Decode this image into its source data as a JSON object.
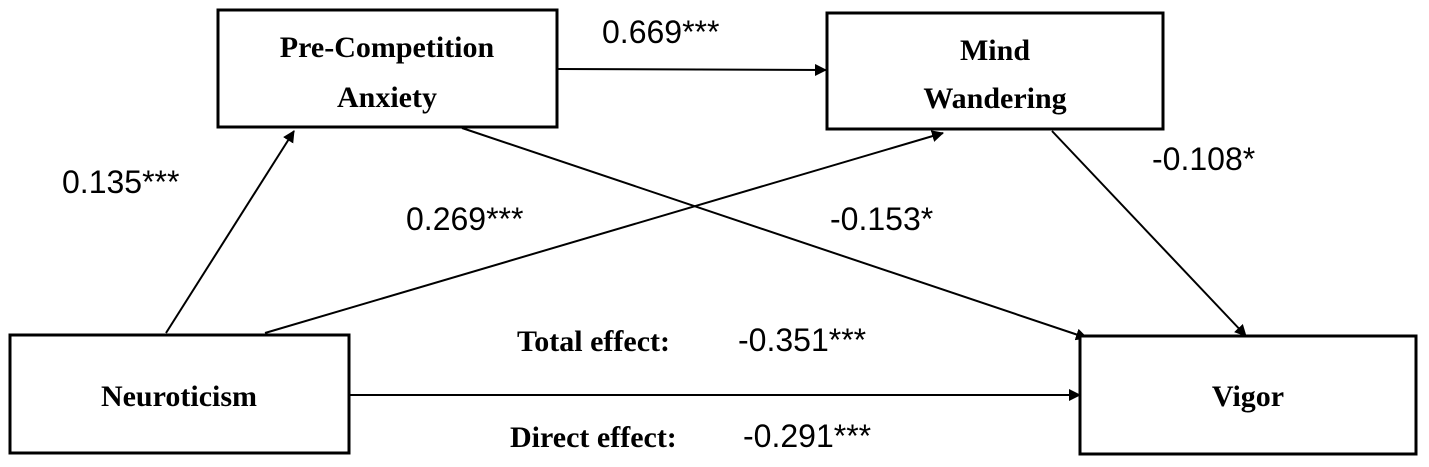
{
  "nodes": {
    "anxiety": {
      "line1": "Pre-Competition",
      "line2": "Anxiety"
    },
    "mind": {
      "line1": "Mind",
      "line2": "Wandering"
    },
    "neuroticism": {
      "label": "Neuroticism"
    },
    "vigor": {
      "label": "Vigor"
    }
  },
  "paths": {
    "anxiety_to_mind": "0.669***",
    "neuroticism_to_anxiety": "0.135***",
    "neuroticism_to_mind": "0.269***",
    "anxiety_to_vigor": "-0.153*",
    "mind_to_vigor": "-0.108*"
  },
  "effects": {
    "total_label": "Total effect:",
    "total_value": "-0.351***",
    "direct_label": "Direct effect:",
    "direct_value": "-0.291***"
  }
}
